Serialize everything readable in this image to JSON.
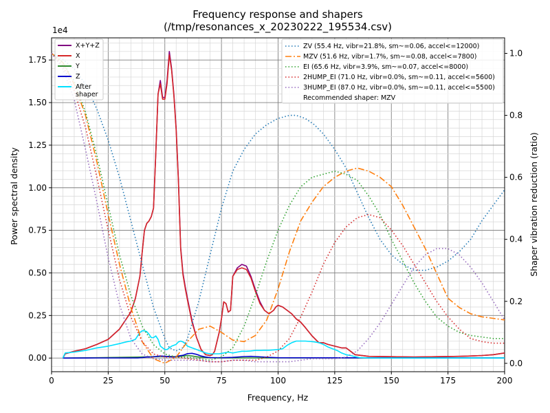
{
  "chart_data": {
    "type": "line",
    "title": "Frequency response and shapers",
    "subtitle": "(/tmp/resonances_x_20230222_195534.csv)",
    "xlabel": "Frequency, Hz",
    "ylabel": "Power spectral density",
    "y2label": "Shaper vibration reduction (ratio)",
    "y_scale_label": "1e4",
    "xlim": [
      0,
      200
    ],
    "ylim": [
      -800,
      18800
    ],
    "y2lim": [
      -0.027,
      1.05
    ],
    "x_ticks": [
      "0",
      "25",
      "50",
      "75",
      "100",
      "125",
      "150",
      "175",
      "200"
    ],
    "x_tick_values": [
      0,
      25,
      50,
      75,
      100,
      125,
      150,
      175,
      200
    ],
    "y_ticks": [
      "0.00",
      "0.25",
      "0.50",
      "0.75",
      "1.00",
      "1.25",
      "1.50",
      "1.75"
    ],
    "y_tick_values": [
      0,
      2500,
      5000,
      7500,
      10000,
      12500,
      15000,
      17500
    ],
    "y2_ticks": [
      "0.0",
      "0.2",
      "0.4",
      "0.6",
      "0.8",
      "1.0"
    ],
    "y2_tick_values": [
      0,
      0.2,
      0.4,
      0.6,
      0.8,
      1.0
    ],
    "grid": true,
    "legend_left_position": "top-left",
    "legend_right_position": "top-right",
    "psd_series": [
      {
        "name": "X+Y+Z",
        "color": "#800080",
        "style": "solid",
        "x": [
          5,
          6,
          10,
          15,
          20,
          25,
          30,
          33,
          35,
          37,
          39,
          40,
          41,
          42,
          43,
          44,
          45,
          46,
          47,
          48,
          49,
          50,
          51,
          52,
          53,
          54,
          55,
          56,
          57,
          58,
          59,
          60,
          62,
          64,
          66,
          68,
          70,
          71,
          72,
          74,
          75,
          76,
          77,
          78,
          79,
          80,
          82,
          84,
          86,
          88,
          90,
          92,
          94,
          96,
          98,
          99,
          100,
          102,
          104,
          106,
          108,
          110,
          112,
          115,
          118,
          120,
          122,
          125,
          128,
          130,
          132,
          134,
          140,
          150,
          160,
          170,
          180,
          185,
          190,
          195,
          200
        ],
        "y": [
          0,
          250,
          400,
          550,
          800,
          1100,
          1700,
          2300,
          2700,
          3500,
          4800,
          6200,
          7500,
          7900,
          8050,
          8300,
          8800,
          12000,
          15500,
          16300,
          15300,
          15300,
          16300,
          18000,
          17000,
          15500,
          13500,
          10500,
          6500,
          5000,
          4200,
          3500,
          2200,
          1200,
          500,
          200,
          150,
          200,
          400,
          1500,
          2300,
          3300,
          3200,
          2700,
          2800,
          4800,
          5300,
          5500,
          5400,
          4800,
          4000,
          3300,
          2800,
          2600,
          2800,
          3000,
          3100,
          3000,
          2800,
          2600,
          2300,
          2100,
          1800,
          1300,
          900,
          900,
          800,
          700,
          600,
          600,
          400,
          200,
          100,
          80,
          60,
          80,
          100,
          120,
          150,
          200,
          300
        ]
      },
      {
        "name": "X",
        "color": "#d62728",
        "style": "solid",
        "x": [
          5,
          6,
          10,
          15,
          20,
          25,
          30,
          33,
          35,
          37,
          39,
          40,
          41,
          42,
          43,
          44,
          45,
          46,
          47,
          48,
          49,
          50,
          51,
          52,
          53,
          54,
          55,
          56,
          57,
          58,
          59,
          60,
          62,
          64,
          66,
          68,
          70,
          71,
          72,
          74,
          75,
          76,
          77,
          78,
          79,
          80,
          82,
          84,
          86,
          88,
          90,
          92,
          94,
          96,
          98,
          99,
          100,
          102,
          104,
          106,
          108,
          110,
          112,
          115,
          118,
          120,
          122,
          125,
          128,
          130,
          132,
          134,
          140,
          150,
          160,
          170,
          180,
          185,
          190,
          195,
          200
        ],
        "y": [
          0,
          250,
          400,
          550,
          800,
          1100,
          1700,
          2300,
          2700,
          3500,
          4800,
          6200,
          7500,
          7900,
          8050,
          8300,
          8800,
          12000,
          15500,
          16100,
          15200,
          15200,
          16100,
          17800,
          16900,
          15400,
          13400,
          10400,
          6400,
          4900,
          4100,
          3400,
          2100,
          1200,
          500,
          200,
          150,
          200,
          400,
          1500,
          2300,
          3300,
          3200,
          2700,
          2800,
          4800,
          5200,
          5300,
          5200,
          4700,
          3900,
          3200,
          2800,
          2600,
          2800,
          3000,
          3100,
          3000,
          2800,
          2600,
          2300,
          2100,
          1800,
          1300,
          900,
          900,
          800,
          700,
          600,
          600,
          400,
          200,
          100,
          80,
          60,
          80,
          100,
          120,
          150,
          200,
          300
        ]
      },
      {
        "name": "Y",
        "color": "#2e8b2e",
        "style": "solid",
        "x": [
          5,
          20,
          40,
          45,
          50,
          55,
          58,
          60,
          62,
          64,
          66,
          68,
          70,
          75,
          80,
          90,
          100,
          200
        ],
        "y": [
          0,
          20,
          60,
          80,
          100,
          80,
          120,
          150,
          120,
          80,
          50,
          30,
          20,
          10,
          10,
          10,
          10,
          10
        ]
      },
      {
        "name": "Z",
        "color": "#0000cc",
        "style": "solid",
        "x": [
          5,
          20,
          38,
          40,
          42,
          44,
          46,
          48,
          50,
          52,
          54,
          56,
          58,
          60,
          62,
          64,
          66,
          68,
          70,
          75,
          80,
          85,
          88,
          90,
          95,
          100,
          200
        ],
        "y": [
          0,
          10,
          10,
          30,
          60,
          60,
          90,
          120,
          100,
          80,
          60,
          120,
          160,
          260,
          280,
          220,
          120,
          60,
          30,
          20,
          40,
          90,
          100,
          90,
          50,
          20,
          10
        ]
      },
      {
        "name": "After\nshaper",
        "color": "#00e0ff",
        "style": "solid",
        "x": [
          5,
          6,
          10,
          15,
          20,
          25,
          30,
          33,
          35,
          37,
          38,
          39,
          40,
          41,
          42,
          43,
          44,
          45,
          46,
          47,
          48,
          49,
          50,
          51,
          52,
          53,
          54,
          55,
          56,
          57,
          58,
          59,
          60,
          62,
          64,
          66,
          68,
          70,
          72,
          74,
          76,
          78,
          80,
          82,
          84,
          86,
          88,
          90,
          92,
          94,
          96,
          98,
          100,
          102,
          104,
          106,
          108,
          110,
          112,
          114,
          116,
          118,
          120,
          122,
          124,
          126,
          128,
          130,
          132,
          134,
          136,
          140,
          150,
          200
        ],
        "y": [
          0,
          300,
          350,
          450,
          600,
          700,
          850,
          950,
          1000,
          1100,
          1300,
          1500,
          1600,
          1600,
          1550,
          1400,
          1200,
          1200,
          1300,
          1100,
          700,
          600,
          500,
          500,
          600,
          700,
          750,
          800,
          950,
          1000,
          950,
          850,
          700,
          600,
          500,
          400,
          300,
          250,
          250,
          250,
          300,
          350,
          300,
          350,
          400,
          400,
          420,
          450,
          450,
          460,
          460,
          480,
          500,
          550,
          750,
          900,
          1000,
          1000,
          1000,
          980,
          950,
          900,
          800,
          650,
          550,
          450,
          300,
          200,
          150,
          80,
          30,
          10,
          5,
          5
        ]
      }
    ],
    "shaper_series": [
      {
        "name": "ZV (55.4 Hz, vibr=21.8%, sm~=0.06, accel<=12000)",
        "color": "#1f77b4",
        "style": "dotted",
        "x": [
          0,
          5,
          10,
          15,
          20,
          25,
          30,
          35,
          40,
          45,
          50,
          52,
          55,
          58,
          60,
          65,
          70,
          75,
          80,
          85,
          90,
          95,
          100,
          105,
          108,
          112,
          116,
          120,
          125,
          130,
          135,
          140,
          145,
          150,
          155,
          160,
          165,
          170,
          175,
          180,
          185,
          190,
          195,
          200
        ],
        "y": [
          1.0,
          0.98,
          0.95,
          0.9,
          0.82,
          0.72,
          0.6,
          0.46,
          0.32,
          0.18,
          0.08,
          0.05,
          0.04,
          0.05,
          0.08,
          0.2,
          0.35,
          0.5,
          0.62,
          0.69,
          0.74,
          0.77,
          0.79,
          0.8,
          0.8,
          0.79,
          0.77,
          0.74,
          0.69,
          0.63,
          0.55,
          0.47,
          0.4,
          0.35,
          0.32,
          0.3,
          0.3,
          0.31,
          0.33,
          0.36,
          0.4,
          0.46,
          0.51,
          0.56
        ]
      },
      {
        "name": "MZV (51.6 Hz, vibr=1.7%, sm~=0.08, accel<=7800)",
        "color": "#ff7f0e",
        "style": "dashdot",
        "x": [
          0,
          5,
          10,
          15,
          20,
          25,
          30,
          35,
          40,
          45,
          50,
          55,
          60,
          65,
          70,
          75,
          80,
          85,
          90,
          95,
          100,
          105,
          110,
          115,
          120,
          125,
          130,
          135,
          140,
          145,
          150,
          155,
          160,
          165,
          170,
          175,
          180,
          185,
          190,
          195,
          200
        ],
        "y": [
          1.0,
          0.97,
          0.9,
          0.8,
          0.65,
          0.48,
          0.32,
          0.18,
          0.07,
          0.015,
          0.0,
          0.02,
          0.07,
          0.11,
          0.12,
          0.1,
          0.075,
          0.07,
          0.09,
          0.14,
          0.24,
          0.36,
          0.46,
          0.52,
          0.57,
          0.6,
          0.62,
          0.63,
          0.62,
          0.6,
          0.57,
          0.51,
          0.44,
          0.37,
          0.29,
          0.21,
          0.18,
          0.16,
          0.15,
          0.145,
          0.14
        ]
      },
      {
        "name": "EI (65.6 Hz, vibr=3.9%, sm~=0.07, accel<=8000)",
        "color": "#2ca02c",
        "style": "dotted",
        "x": [
          0,
          5,
          10,
          15,
          20,
          25,
          30,
          35,
          40,
          45,
          50,
          55,
          60,
          65,
          70,
          75,
          80,
          85,
          90,
          95,
          100,
          105,
          110,
          115,
          120,
          125,
          130,
          135,
          140,
          145,
          150,
          155,
          160,
          165,
          170,
          175,
          180,
          185,
          190,
          195,
          200
        ],
        "y": [
          1.0,
          0.97,
          0.91,
          0.81,
          0.67,
          0.51,
          0.35,
          0.22,
          0.12,
          0.06,
          0.03,
          0.02,
          0.02,
          0.015,
          0.01,
          0.02,
          0.05,
          0.12,
          0.22,
          0.33,
          0.43,
          0.51,
          0.57,
          0.6,
          0.61,
          0.62,
          0.61,
          0.59,
          0.54,
          0.48,
          0.4,
          0.33,
          0.26,
          0.2,
          0.15,
          0.12,
          0.1,
          0.09,
          0.085,
          0.08,
          0.08
        ]
      },
      {
        "name": "2HUMP_EI (71.0 Hz, vibr=0.0%, sm~=0.11, accel<=5600)",
        "color": "#d62728",
        "style": "dotted",
        "x": [
          0,
          5,
          10,
          15,
          20,
          25,
          30,
          35,
          40,
          45,
          50,
          55,
          60,
          65,
          70,
          75,
          80,
          85,
          90,
          95,
          100,
          105,
          110,
          115,
          120,
          125,
          130,
          135,
          140,
          145,
          150,
          155,
          160,
          165,
          170,
          175,
          180,
          185,
          190,
          195,
          200
        ],
        "y": [
          1.0,
          0.96,
          0.88,
          0.76,
          0.6,
          0.43,
          0.27,
          0.15,
          0.07,
          0.03,
          0.02,
          0.02,
          0.015,
          0.01,
          0.005,
          0.005,
          0.01,
          0.01,
          0.01,
          0.02,
          0.04,
          0.08,
          0.15,
          0.23,
          0.32,
          0.39,
          0.44,
          0.47,
          0.48,
          0.47,
          0.43,
          0.38,
          0.32,
          0.26,
          0.2,
          0.15,
          0.11,
          0.08,
          0.07,
          0.065,
          0.065
        ]
      },
      {
        "name": "3HUMP_EI (87.0 Hz, vibr=0.0%, sm~=0.11, accel<=5500)",
        "color": "#9467bd",
        "style": "dotted",
        "x": [
          0,
          5,
          10,
          15,
          20,
          25,
          30,
          35,
          40,
          45,
          50,
          55,
          60,
          65,
          70,
          75,
          80,
          85,
          90,
          95,
          100,
          105,
          110,
          115,
          120,
          125,
          130,
          135,
          140,
          145,
          150,
          155,
          160,
          165,
          170,
          175,
          180,
          185,
          190,
          195,
          200
        ],
        "y": [
          1.0,
          0.95,
          0.85,
          0.69,
          0.52,
          0.34,
          0.19,
          0.08,
          0.03,
          0.015,
          0.01,
          0.01,
          0.01,
          0.01,
          0.005,
          0.005,
          0.01,
          0.01,
          0.005,
          0.005,
          0.005,
          0.005,
          0.01,
          0.015,
          0.015,
          0.015,
          0.02,
          0.04,
          0.08,
          0.13,
          0.19,
          0.25,
          0.31,
          0.35,
          0.37,
          0.37,
          0.35,
          0.31,
          0.26,
          0.2,
          0.14
        ]
      }
    ],
    "recommended_text": "Recommended shaper: MZV"
  }
}
